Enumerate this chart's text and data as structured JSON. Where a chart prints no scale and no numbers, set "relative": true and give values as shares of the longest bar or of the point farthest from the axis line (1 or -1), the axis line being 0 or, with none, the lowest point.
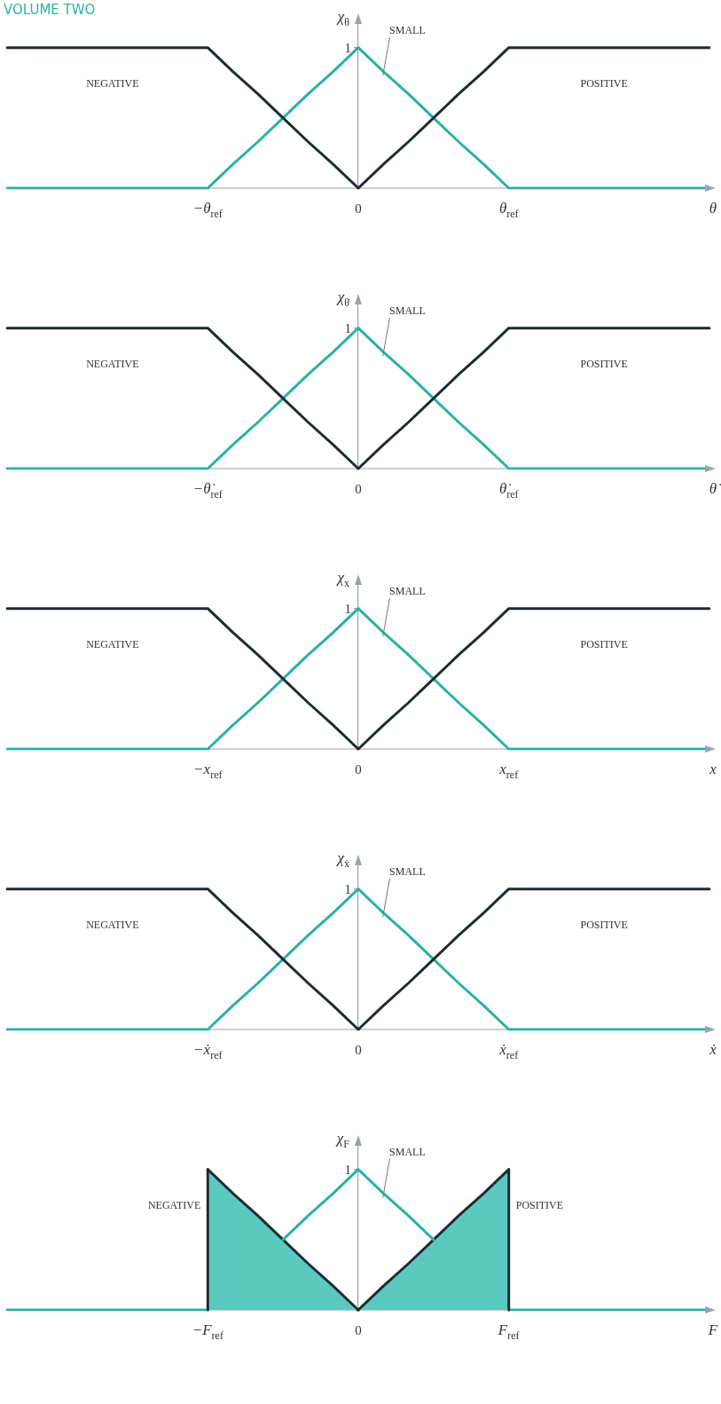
{
  "chart_data": [
    {
      "type": "line",
      "relative": true,
      "annotations": [
        "VOLUME TWO",
        {
          "text": "1",
          "x": "0",
          "y": 1
        }
      ],
      "xlabel": "θ",
      "ylabel": "χ$_{θ}$",
      "legend": false,
      "marker": "none",
      "line_style": "solid",
      "categories": [
        null,
        null,
        null,
        null,
        null,
        null,
        null,
        null,
        "−θ$_{ref}$",
        null,
        null,
        null,
        null,
        null,
        "0",
        null,
        null,
        null,
        null,
        null,
        "θ$_{ref}$",
        null,
        null,
        null,
        null,
        null,
        null,
        null,
        null
      ],
      "series": [
        {
          "name": "NEGATIVE",
          "color": "#1e2b30",
          "values": [
            1,
            1,
            1,
            1,
            1,
            1,
            1,
            1,
            1,
            0.83,
            0.67,
            0.5,
            0.33,
            0.17,
            0,
            null,
            null,
            null,
            null,
            null,
            null,
            null,
            null,
            null,
            null,
            null,
            null,
            null,
            null
          ]
        },
        {
          "name": "POSITIVE",
          "color": "#1e2b30",
          "values": [
            null,
            null,
            null,
            null,
            null,
            null,
            null,
            null,
            null,
            null,
            null,
            null,
            null,
            null,
            0,
            0.17,
            0.33,
            0.5,
            0.67,
            0.83,
            1,
            1,
            1,
            1,
            1,
            1,
            1,
            1,
            1
          ]
        },
        {
          "name": "SMALL",
          "color": "#2bb0a3",
          "values": [
            0,
            0,
            0,
            0,
            0,
            0,
            0,
            0,
            0,
            0.17,
            0.33,
            0.5,
            0.67,
            0.83,
            1,
            0.83,
            0.67,
            0.5,
            0.33,
            0.17,
            0,
            0,
            0,
            0,
            0,
            0,
            0,
            0,
            0
          ]
        }
      ]
    },
    {
      "type": "line",
      "relative": true,
      "annotations": [
        {
          "text": "1",
          "x": "0",
          "y": 1
        }
      ],
      "xlabel": "θ̇",
      "ylabel": "χ$_{θ̇}$",
      "legend": false,
      "marker": "none",
      "line_style": "solid",
      "categories": [
        null,
        null,
        null,
        null,
        null,
        null,
        null,
        null,
        "−θ̇$_{ref}$",
        null,
        null,
        null,
        null,
        null,
        "0",
        null,
        null,
        null,
        null,
        null,
        "θ̇$_{ref}$",
        null,
        null,
        null,
        null,
        null,
        null,
        null,
        null
      ],
      "series": [
        {
          "name": "NEGATIVE",
          "color": "#1e2b30",
          "values": [
            1,
            1,
            1,
            1,
            1,
            1,
            1,
            1,
            1,
            0.83,
            0.67,
            0.5,
            0.33,
            0.17,
            0,
            null,
            null,
            null,
            null,
            null,
            null,
            null,
            null,
            null,
            null,
            null,
            null,
            null,
            null
          ]
        },
        {
          "name": "POSITIVE",
          "color": "#1e2b30",
          "values": [
            null,
            null,
            null,
            null,
            null,
            null,
            null,
            null,
            null,
            null,
            null,
            null,
            null,
            null,
            0,
            0.17,
            0.33,
            0.5,
            0.67,
            0.83,
            1,
            1,
            1,
            1,
            1,
            1,
            1,
            1,
            1
          ]
        },
        {
          "name": "SMALL",
          "color": "#2bb0a3",
          "values": [
            0,
            0,
            0,
            0,
            0,
            0,
            0,
            0,
            0,
            0.17,
            0.33,
            0.5,
            0.67,
            0.83,
            1,
            0.83,
            0.67,
            0.5,
            0.33,
            0.17,
            0,
            0,
            0,
            0,
            0,
            0,
            0,
            0,
            0
          ]
        }
      ]
    },
    {
      "type": "line",
      "relative": true,
      "annotations": [
        {
          "text": "1",
          "x": "0",
          "y": 1
        }
      ],
      "xlabel": "x",
      "ylabel": "χ$_{x}$",
      "legend": false,
      "marker": "none",
      "line_style": "solid",
      "categories": [
        null,
        null,
        null,
        null,
        null,
        null,
        null,
        null,
        "−x$_{ref}$",
        null,
        null,
        null,
        null,
        null,
        "0",
        null,
        null,
        null,
        null,
        null,
        "x$_{ref}$",
        null,
        null,
        null,
        null,
        null,
        null,
        null,
        null
      ],
      "series": [
        {
          "name": "NEGATIVE",
          "color": "#1e2b30",
          "values": [
            1,
            1,
            1,
            1,
            1,
            1,
            1,
            1,
            1,
            0.83,
            0.67,
            0.5,
            0.33,
            0.17,
            0,
            null,
            null,
            null,
            null,
            null,
            null,
            null,
            null,
            null,
            null,
            null,
            null,
            null,
            null
          ]
        },
        {
          "name": "POSITIVE",
          "color": "#1e2b30",
          "values": [
            null,
            null,
            null,
            null,
            null,
            null,
            null,
            null,
            null,
            null,
            null,
            null,
            null,
            null,
            0,
            0.17,
            0.33,
            0.5,
            0.67,
            0.83,
            1,
            1,
            1,
            1,
            1,
            1,
            1,
            1,
            1
          ]
        },
        {
          "name": "SMALL",
          "color": "#2bb0a3",
          "values": [
            0,
            0,
            0,
            0,
            0,
            0,
            0,
            0,
            0,
            0.17,
            0.33,
            0.5,
            0.67,
            0.83,
            1,
            0.83,
            0.67,
            0.5,
            0.33,
            0.17,
            0,
            0,
            0,
            0,
            0,
            0,
            0,
            0,
            0
          ]
        }
      ]
    },
    {
      "type": "line",
      "relative": true,
      "annotations": [
        {
          "text": "1",
          "x": "0",
          "y": 1
        }
      ],
      "xlabel": "ẋ",
      "ylabel": "χ$_{ẋ}$",
      "legend": false,
      "marker": "none",
      "line_style": "solid",
      "categories": [
        null,
        null,
        null,
        null,
        null,
        null,
        null,
        null,
        "−ẋ$_{ref}$",
        null,
        null,
        null,
        null,
        null,
        "0",
        null,
        null,
        null,
        null,
        null,
        "ẋ$_{ref}$",
        null,
        null,
        null,
        null,
        null,
        null,
        null,
        null
      ],
      "series": [
        {
          "name": "NEGATIVE",
          "color": "#1e2b30",
          "values": [
            1,
            1,
            1,
            1,
            1,
            1,
            1,
            1,
            1,
            0.83,
            0.67,
            0.5,
            0.33,
            0.17,
            0,
            null,
            null,
            null,
            null,
            null,
            null,
            null,
            null,
            null,
            null,
            null,
            null,
            null,
            null
          ]
        },
        {
          "name": "POSITIVE",
          "color": "#1e2b30",
          "values": [
            null,
            null,
            null,
            null,
            null,
            null,
            null,
            null,
            null,
            null,
            null,
            null,
            null,
            null,
            0,
            0.17,
            0.33,
            0.5,
            0.67,
            0.83,
            1,
            1,
            1,
            1,
            1,
            1,
            1,
            1,
            1
          ]
        },
        {
          "name": "SMALL",
          "color": "#2bb0a3",
          "values": [
            0,
            0,
            0,
            0,
            0,
            0,
            0,
            0,
            0,
            0.17,
            0.33,
            0.5,
            0.67,
            0.83,
            1,
            0.83,
            0.67,
            0.5,
            0.33,
            0.17,
            0,
            0,
            0,
            0,
            0,
            0,
            0,
            0,
            0
          ]
        }
      ]
    },
    {
      "type": "line",
      "relative": true,
      "annotations": [
        {
          "text": "1",
          "x": "0",
          "y": 1
        }
      ],
      "xlabel": "F",
      "ylabel": "χ$_{F}$",
      "legend": false,
      "marker": "none",
      "line_style": "solid",
      "categories": [
        null,
        null,
        null,
        null,
        null,
        null,
        null,
        null,
        "−F$_{ref}$",
        null,
        null,
        null,
        null,
        null,
        "0",
        null,
        null,
        null,
        null,
        null,
        "F$_{ref}$",
        null,
        null,
        null,
        null,
        null,
        null,
        null,
        null
      ],
      "series": [
        {
          "name": "NEGATIVE",
          "type": "area",
          "color": "#5cc9c1",
          "values": [
            null,
            null,
            null,
            null,
            null,
            null,
            null,
            null,
            1,
            0.83,
            0.67,
            0.5,
            0.33,
            0.17,
            0,
            null,
            null,
            null,
            null,
            null,
            null,
            null,
            null,
            null,
            null,
            null,
            null,
            null,
            null
          ]
        },
        {
          "name": "POSITIVE",
          "type": "area",
          "color": "#5cc9c1",
          "values": [
            null,
            null,
            null,
            null,
            null,
            null,
            null,
            null,
            null,
            null,
            null,
            null,
            null,
            null,
            0,
            0.17,
            0.33,
            0.5,
            0.67,
            0.83,
            1,
            null,
            null,
            null,
            null,
            null,
            null,
            null,
            null
          ]
        },
        {
          "name": "SMALL",
          "color": "#2bb0a3",
          "values": [
            0,
            0,
            0,
            0,
            0,
            0,
            0,
            0,
            0,
            null,
            null,
            0.5,
            0.67,
            0.83,
            1,
            0.83,
            0.67,
            0.5,
            null,
            null,
            0,
            0,
            0,
            0,
            0,
            0,
            0,
            0,
            0
          ]
        }
      ]
    }
  ]
}
